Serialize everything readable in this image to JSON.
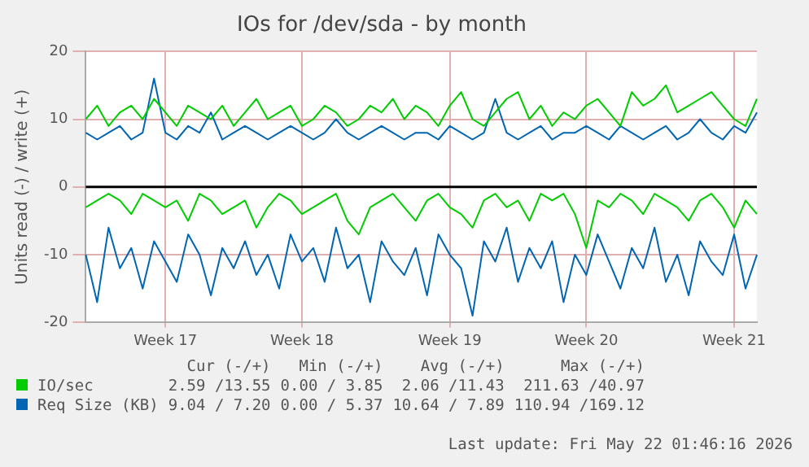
{
  "chart_data": {
    "type": "line",
    "title": "IOs for /dev/sda - by month",
    "ylabel": "Units read (-) / write (+)",
    "categories": [
      null,
      null,
      null,
      null,
      null,
      null,
      null,
      "Week 17",
      null,
      null,
      null,
      null,
      null,
      null,
      null,
      null,
      null,
      null,
      null,
      "Week 18",
      null,
      null,
      null,
      null,
      null,
      null,
      null,
      null,
      null,
      null,
      null,
      null,
      "Week 19",
      null,
      null,
      null,
      null,
      null,
      null,
      null,
      null,
      null,
      null,
      null,
      "Week 20",
      null,
      null,
      null,
      null,
      null,
      null,
      null,
      null,
      null,
      null,
      null,
      null,
      "Week 21",
      null,
      null
    ],
    "ylim": [
      -20,
      20
    ],
    "yticks": [
      -20,
      -10,
      0,
      10,
      20
    ],
    "grid": true,
    "legend": "bottom",
    "series": [
      {
        "name": "IO/sec",
        "color": "#00cc00",
        "values": [
          10,
          12,
          9,
          11,
          12,
          10,
          13,
          11,
          9,
          12,
          11,
          10,
          12,
          9,
          11,
          13,
          10,
          11,
          12,
          9,
          10,
          12,
          11,
          9,
          10,
          12,
          11,
          13,
          10,
          12,
          11,
          9,
          12,
          14,
          10,
          9,
          11,
          13,
          14,
          10,
          12,
          9,
          11,
          10,
          12,
          13,
          11,
          9,
          14,
          12,
          13,
          15,
          11,
          12,
          13,
          14,
          12,
          10,
          9,
          13
        ]
      },
      {
        "color": "#00cc00",
        "values": [
          -3,
          -2,
          -1,
          -2,
          -4,
          -1,
          -2,
          -3,
          -2,
          -5,
          -1,
          -2,
          -4,
          -3,
          -2,
          -6,
          -3,
          -1,
          -2,
          -4,
          -3,
          -2,
          -1,
          -5,
          -7,
          -3,
          -2,
          -1,
          -3,
          -5,
          -2,
          -1,
          -3,
          -4,
          -6,
          -2,
          -1,
          -3,
          -2,
          -5,
          -1,
          -2,
          -1,
          -4,
          -9,
          -2,
          -3,
          -1,
          -2,
          -4,
          -1,
          -2,
          -3,
          -5,
          -2,
          -1,
          -3,
          -6,
          -2,
          -4
        ]
      },
      {
        "name": "Req Size (KB)",
        "color": "#0066b3",
        "values": [
          8,
          7,
          8,
          9,
          7,
          8,
          16,
          8,
          7,
          9,
          8,
          11,
          7,
          8,
          9,
          8,
          7,
          8,
          9,
          8,
          7,
          8,
          10,
          8,
          7,
          8,
          9,
          8,
          7,
          8,
          8,
          7,
          9,
          8,
          7,
          8,
          13,
          8,
          7,
          8,
          9,
          7,
          8,
          8,
          9,
          8,
          7,
          9,
          8,
          7,
          8,
          9,
          7,
          8,
          10,
          8,
          7,
          9,
          8,
          11
        ]
      },
      {
        "color": "#0066b3",
        "values": [
          -10,
          -17,
          -6,
          -12,
          -9,
          -15,
          -8,
          -11,
          -14,
          -7,
          -10,
          -16,
          -9,
          -12,
          -8,
          -13,
          -10,
          -15,
          -7,
          -11,
          -9,
          -14,
          -6,
          -12,
          -10,
          -17,
          -8,
          -11,
          -13,
          -9,
          -16,
          -7,
          -10,
          -12,
          -19,
          -8,
          -11,
          -6,
          -14,
          -9,
          -12,
          -8,
          -17,
          -10,
          -13,
          -7,
          -11,
          -15,
          -9,
          -12,
          -6,
          -14,
          -10,
          -16,
          -8,
          -11,
          -13,
          -7,
          -15,
          -10
        ]
      }
    ],
    "ref_lines": [
      {
        "axis": "y",
        "value": 0,
        "color": "#000000"
      }
    ],
    "annotations": [
      "Cur (-/+)",
      "Min (-/+)",
      "Avg (-/+)",
      "Max (-/+)",
      "2.59 /13.55",
      "0.00 / 3.85",
      "2.06 /11.43",
      "211.63 /40.97",
      "9.04 / 7.20",
      "0.00 / 5.37",
      "10.64 / 7.89",
      "110.94 /169.12",
      "Last update: Fri May 22 01:46:16 2026"
    ]
  }
}
